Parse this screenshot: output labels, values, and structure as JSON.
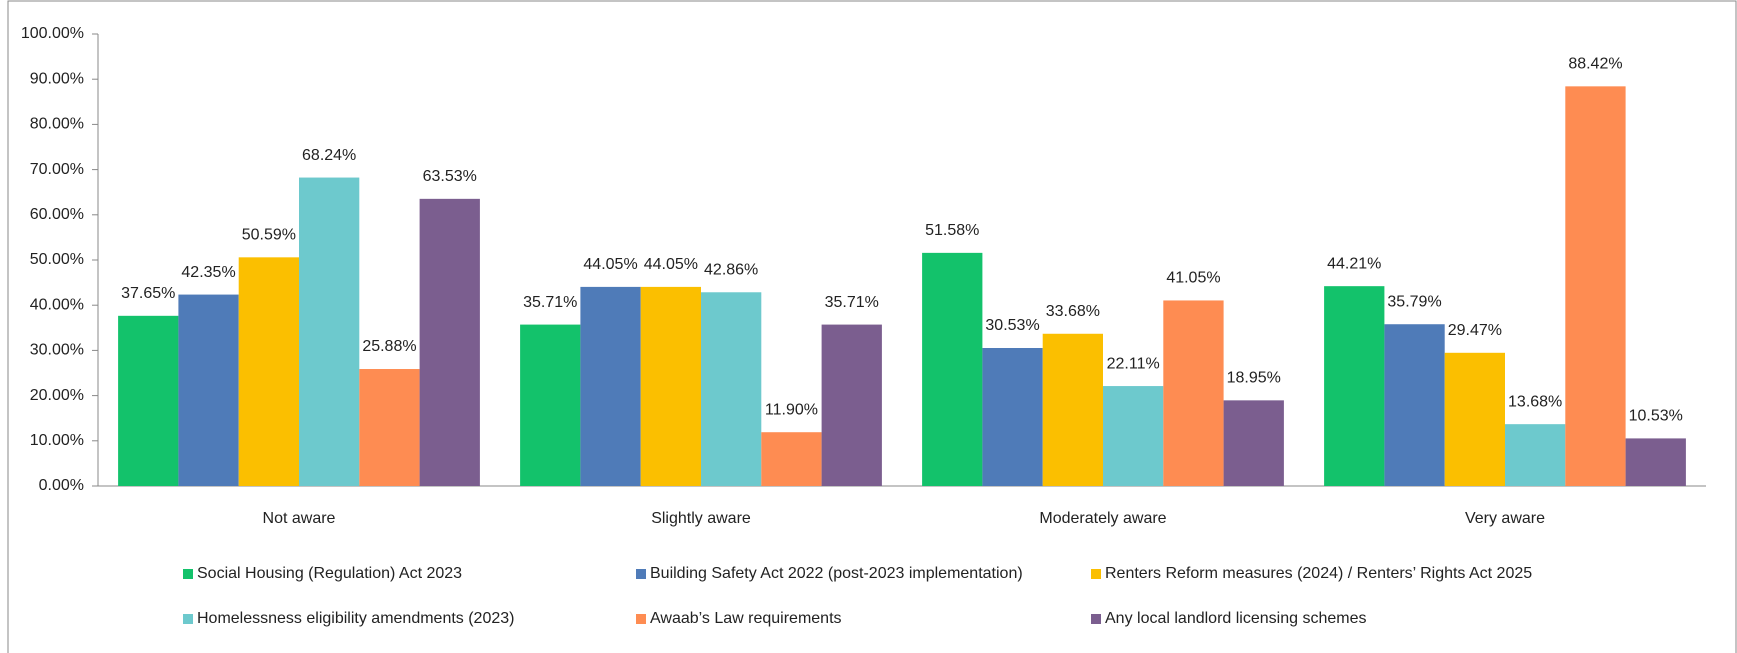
{
  "chart_data": {
    "type": "bar",
    "categories": [
      "Not aware",
      "Slightly aware",
      "Moderately aware",
      "Very aware"
    ],
    "series": [
      {
        "name": "Social Housing (Regulation) Act 2023",
        "color": "#13c26b",
        "values": [
          37.65,
          35.71,
          51.58,
          44.21
        ],
        "value_labels": [
          "37.65%",
          "35.71%",
          "51.58%",
          "44.21%"
        ]
      },
      {
        "name": "Building Safety Act 2022 (post-2023 implementation)",
        "color": "#4f7bb8",
        "values": [
          42.35,
          44.05,
          30.53,
          35.79
        ],
        "value_labels": [
          "42.35%",
          "44.05%",
          "30.53%",
          "35.79%"
        ]
      },
      {
        "name": "Renters Reform measures (2024) / Renters’ Rights Act 2025",
        "color": "#fbbf00",
        "values": [
          50.59,
          44.05,
          33.68,
          29.47
        ],
        "value_labels": [
          "50.59%",
          "44.05%",
          "33.68%",
          "29.47%"
        ]
      },
      {
        "name": "Homelessness eligibility amendments (2023)",
        "color": "#6dc9cd",
        "values": [
          68.24,
          42.86,
          22.11,
          13.68
        ],
        "value_labels": [
          "68.24%",
          "42.86%",
          "22.11%",
          "13.68%"
        ]
      },
      {
        "name": "Awaab’s Law requirements",
        "color": "#fe8c52",
        "values": [
          25.88,
          11.9,
          41.05,
          88.42
        ],
        "value_labels": [
          "25.88%",
          "11.90%",
          "41.05%",
          "88.42%"
        ]
      },
      {
        "name": "Any local landlord licensing schemes",
        "color": "#7b5e8f",
        "values": [
          63.53,
          35.71,
          18.95,
          10.53
        ],
        "value_labels": [
          "63.53%",
          "35.71%",
          "18.95%",
          "10.53%"
        ]
      }
    ],
    "ylim": [
      0,
      100
    ],
    "yticks": [
      {
        "value": 0,
        "label": "0.00%"
      },
      {
        "value": 10,
        "label": "10.00%"
      },
      {
        "value": 20,
        "label": "20.00%"
      },
      {
        "value": 30,
        "label": "30.00%"
      },
      {
        "value": 40,
        "label": "40.00%"
      },
      {
        "value": 50,
        "label": "50.00%"
      },
      {
        "value": 60,
        "label": "60.00%"
      },
      {
        "value": 70,
        "label": "70.00%"
      },
      {
        "value": 80,
        "label": "80.00%"
      },
      {
        "value": 90,
        "label": "90.00%"
      },
      {
        "value": 100,
        "label": "100.00%"
      }
    ],
    "legend": "bottom"
  }
}
